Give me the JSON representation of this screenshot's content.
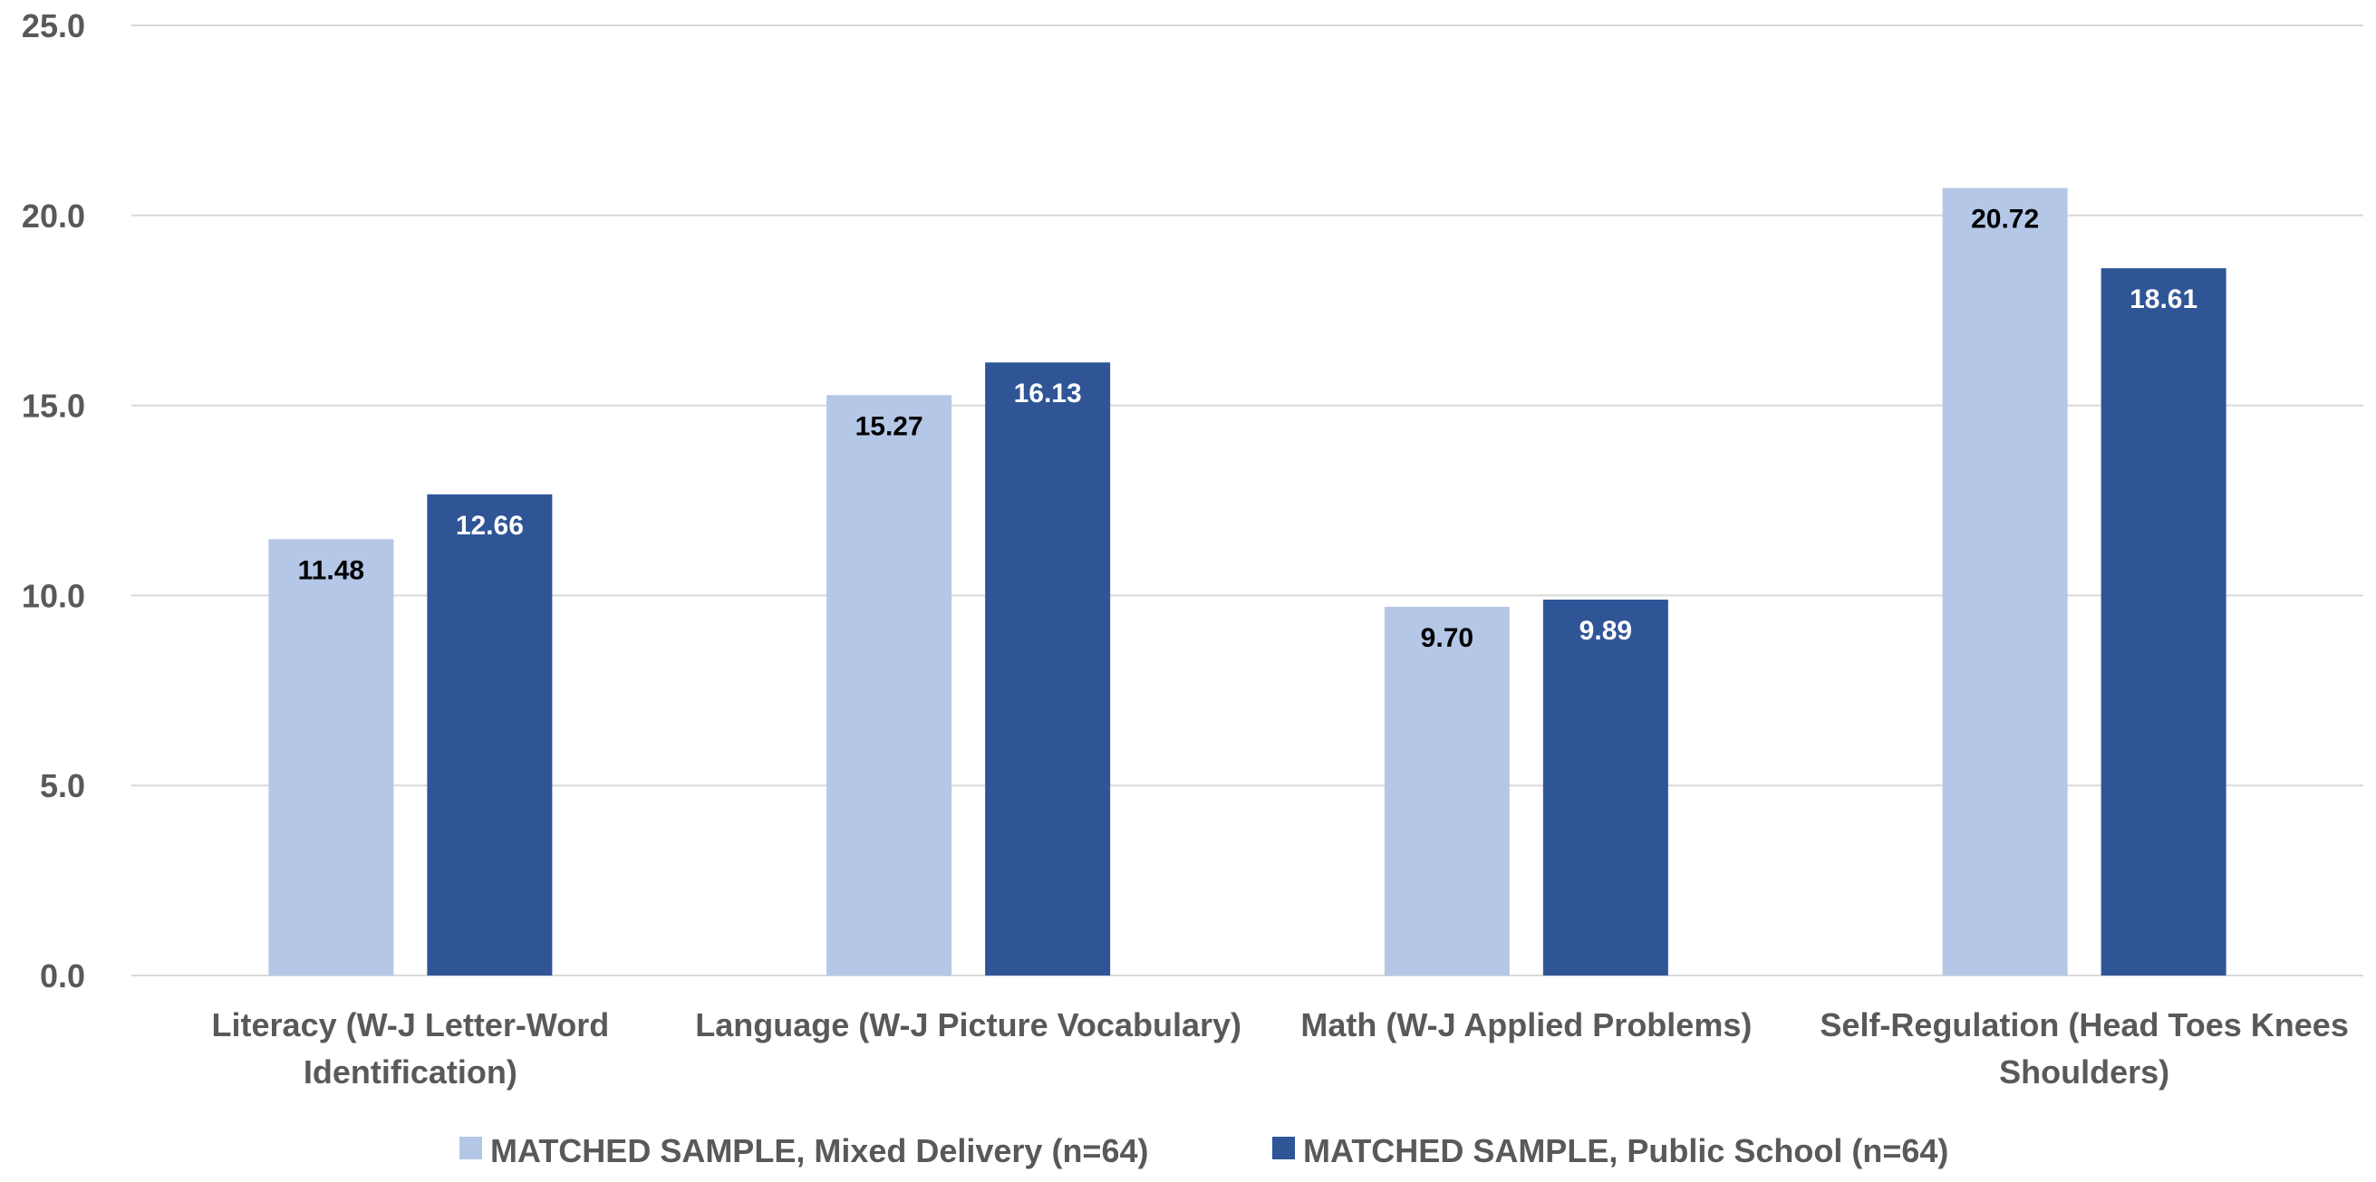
{
  "chart_data": {
    "type": "bar",
    "title": "",
    "xlabel": "",
    "ylabel": "",
    "ylim": [
      0,
      25
    ],
    "y_ticks": [
      "0.0",
      "5.0",
      "10.0",
      "15.0",
      "20.0",
      "25.0"
    ],
    "y_tick_values": [
      0,
      5,
      10,
      15,
      20,
      25
    ],
    "grid": true,
    "legend_position": "bottom",
    "categories": [
      [
        "Literacy (W-J Letter-Word",
        "Identification)"
      ],
      [
        "Language (W-J Picture Vocabulary)"
      ],
      [
        "Math (W-J Applied Problems)"
      ],
      [
        "Self-Regulation (Head Toes Knees",
        "Shoulders)"
      ]
    ],
    "series": [
      {
        "name": "MATCHED SAMPLE, Mixed Delivery (n=64)",
        "color": "#b4c7e7",
        "label_color": "#000000",
        "values": [
          11.48,
          15.27,
          9.7,
          20.72
        ],
        "labels": [
          "11.48",
          "15.27",
          "9.70",
          "20.72"
        ]
      },
      {
        "name": "MATCHED SAMPLE, Public School (n=64)",
        "color": "#2f5597",
        "label_color": "#ffffff",
        "values": [
          12.66,
          16.13,
          9.89,
          18.61
        ],
        "labels": [
          "12.66",
          "16.13",
          "9.89",
          "18.61"
        ]
      }
    ]
  }
}
